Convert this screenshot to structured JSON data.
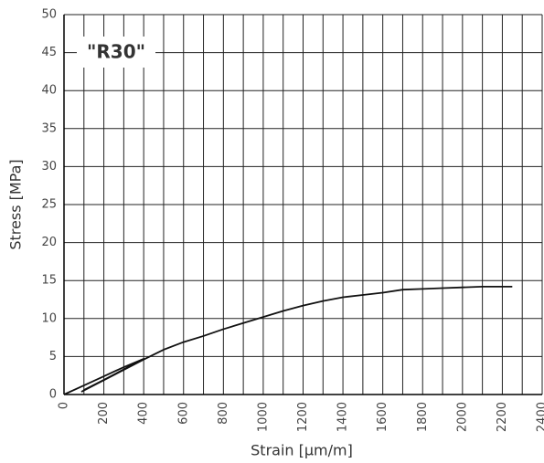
{
  "chart_data": {
    "type": "line",
    "annotation": "\"R30\"",
    "x_label": "Strain [µm/m]",
    "y_label": "Stress [MPa]",
    "series": [
      {
        "color": "#111111",
        "x": [
          0,
          100,
          200,
          300,
          400,
          90,
          400,
          100,
          400,
          500,
          600,
          700,
          800,
          900,
          1000,
          1100,
          1200,
          1300,
          1400,
          1500,
          1600,
          1700,
          1800,
          1900,
          2000,
          2100,
          2250
        ],
        "values": [
          0,
          1.2,
          2.4,
          3.6,
          4.7,
          0.4,
          4.6,
          0.6,
          4.6,
          5.9,
          6.9,
          7.7,
          8.6,
          9.4,
          10.2,
          11,
          11.7,
          12.3,
          12.8,
          13.1,
          13.4,
          13.8,
          13.9,
          14,
          14.1,
          14.2,
          14.2
        ]
      }
    ],
    "xlim": [
      0,
      2400
    ],
    "xticks": [
      0,
      200,
      400,
      600,
      800,
      1000,
      1200,
      1400,
      1600,
      1800,
      2000,
      2200,
      2400
    ],
    "ylim": [
      0,
      50
    ],
    "yticks": [
      0,
      5,
      10,
      15,
      20,
      25,
      30,
      35,
      40,
      45,
      50
    ],
    "grid": true
  }
}
